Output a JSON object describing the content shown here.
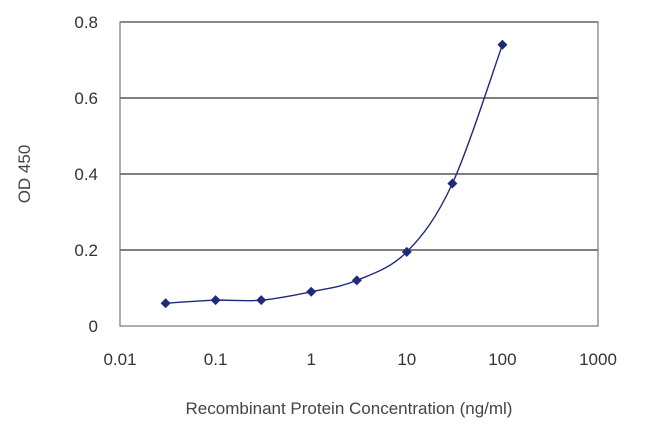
{
  "chart_data": {
    "type": "scatter",
    "title": "",
    "xlabel": "Recombinant Protein Concentration (ng/ml)",
    "ylabel": "OD 450",
    "x_scale": "log",
    "xlim": [
      0.01,
      1000
    ],
    "ylim": [
      0,
      0.8
    ],
    "x_ticks": [
      "0.01",
      "0.1",
      "1",
      "10",
      "100",
      "1000"
    ],
    "y_ticks": [
      "0",
      "0.2",
      "0.4",
      "0.6",
      "0.8"
    ],
    "grid": "horizontal",
    "series": [
      {
        "x": [
          0.03,
          0.1,
          0.3,
          1,
          3,
          10,
          30,
          100
        ],
        "y": [
          0.06,
          0.068,
          0.068,
          0.09,
          0.12,
          0.195,
          0.375,
          0.74
        ],
        "color": "#1f2a7a",
        "marker": "diamond",
        "fit_line": true
      }
    ]
  }
}
